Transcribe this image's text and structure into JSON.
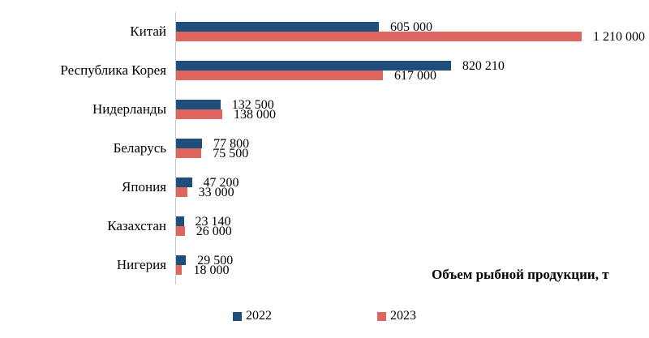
{
  "chart_data": {
    "type": "bar",
    "orientation": "horizontal",
    "title": "",
    "xlabel": "Объем рыбной продукции, т",
    "ylabel": "",
    "grid": false,
    "legend_position": "bottom",
    "xlim": [
      0,
      1210000
    ],
    "categories": [
      "Китай",
      "Республика Корея",
      "Нидерланды",
      "Беларусь",
      "Япония",
      "Казахстан",
      "Нигерия"
    ],
    "series": [
      {
        "name": "2022",
        "color": "#1f4e7b",
        "values": [
          605000,
          820210,
          132500,
          77800,
          47200,
          23140,
          29500
        ],
        "labels": [
          "605 000",
          "820 210",
          "132 500",
          "77 800",
          "47 200",
          "23 140",
          "29 500"
        ]
      },
      {
        "name": "2023",
        "color": "#dd6661",
        "values": [
          1210000,
          617000,
          138000,
          75500,
          33000,
          26000,
          18000
        ],
        "labels": [
          "1 210 000",
          "617 000",
          "138 000",
          "75 500",
          "33 000",
          "26 000",
          "18 000"
        ]
      }
    ]
  },
  "axis_title": "Объем рыбной продукции, т",
  "legend": {
    "items": [
      {
        "label": "2022",
        "color": "#1f4e7b"
      },
      {
        "label": "2023",
        "color": "#dd6661"
      }
    ]
  },
  "colors": {
    "series_2022": "#1f4e7b",
    "series_2023": "#dd6661",
    "axis_line": "#c9c9c9",
    "background": "#ffffff",
    "text": "#000000"
  }
}
